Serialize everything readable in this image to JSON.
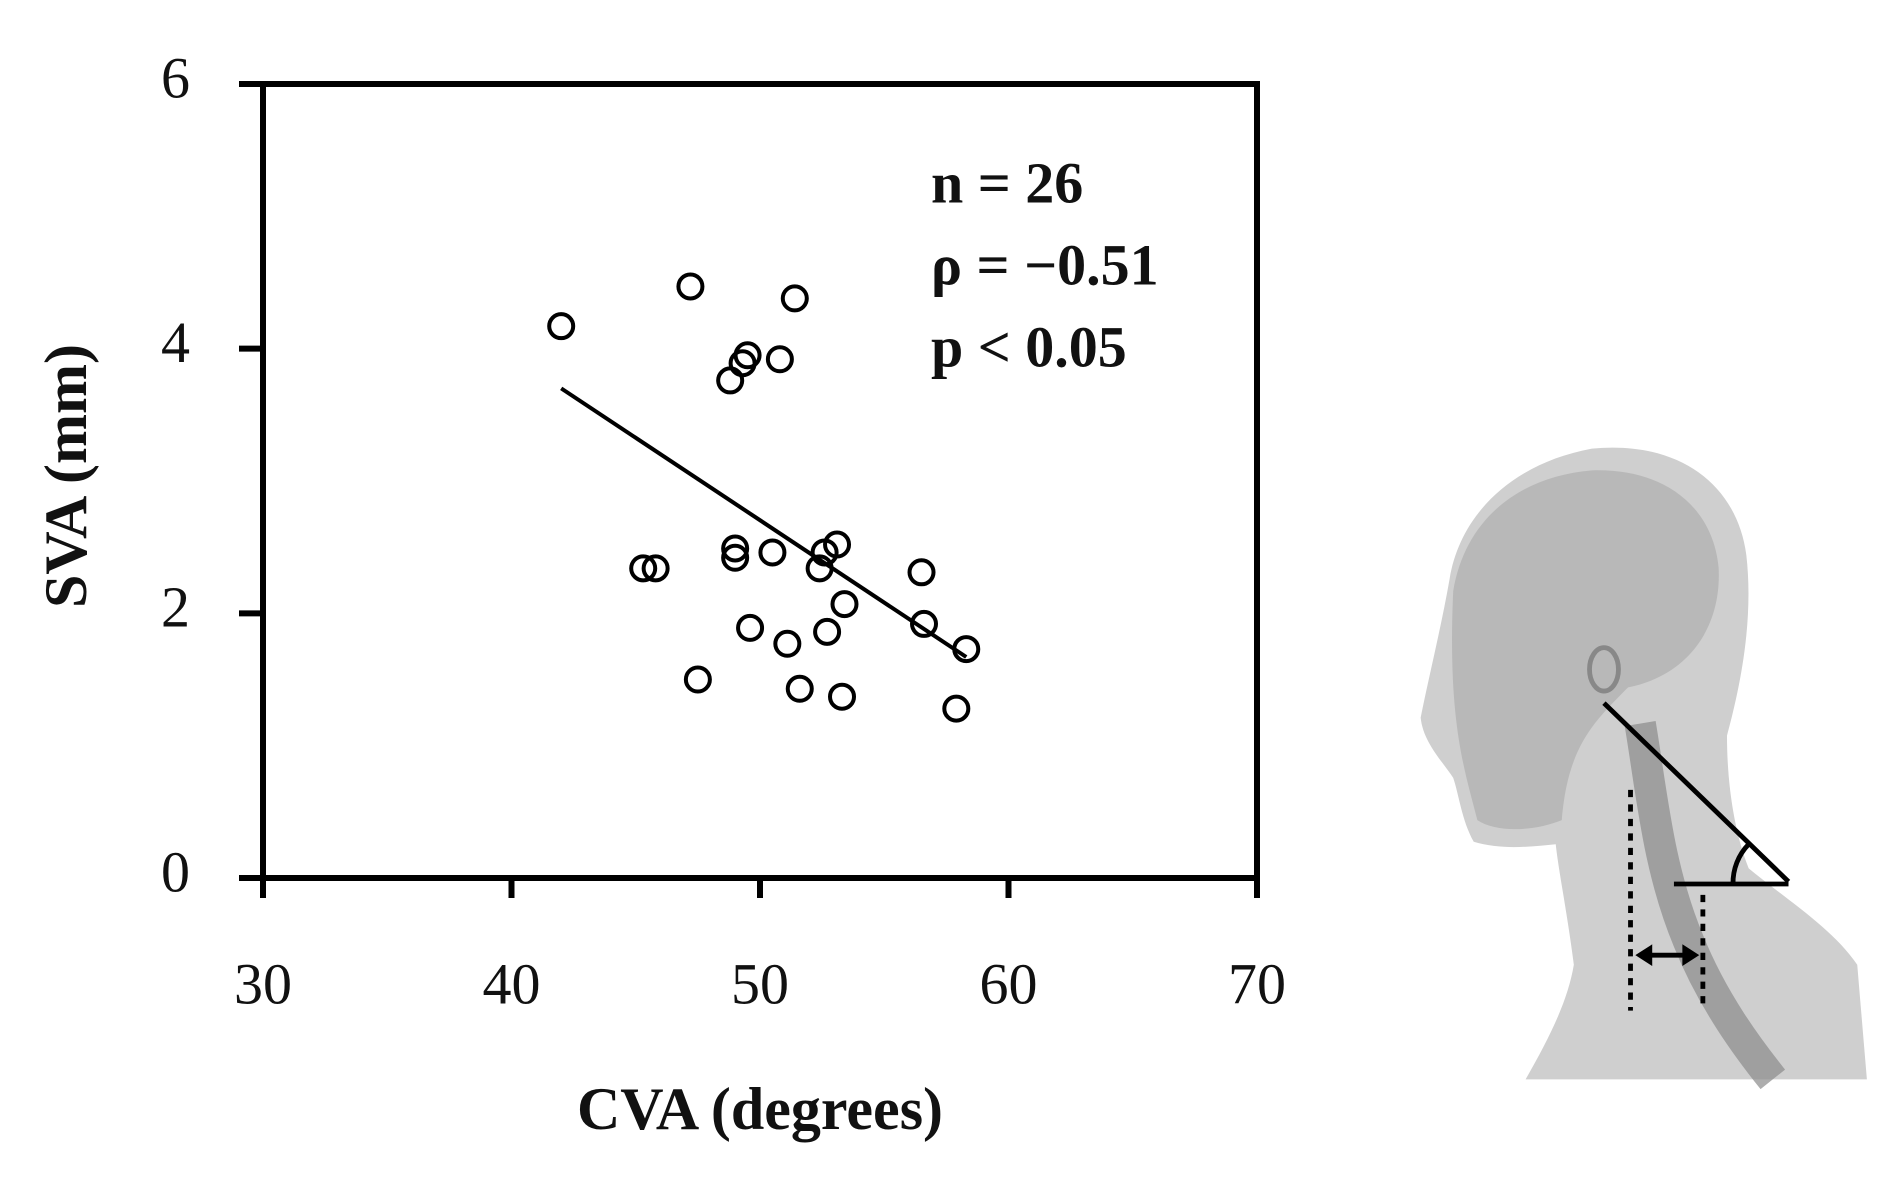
{
  "chart_data": {
    "type": "scatter",
    "xlabel": "CVA (degrees)",
    "ylabel": "SVA (mm)",
    "xlim": [
      30,
      70
    ],
    "xticks": [
      30,
      40,
      50,
      60,
      70
    ],
    "ylim": [
      0,
      6
    ],
    "yticks": [
      0,
      2,
      4,
      6
    ],
    "series": [
      {
        "color": "#000000",
        "x": [
          42.0,
          47.2,
          51.4,
          49.5,
          49.3,
          50.8,
          48.8,
          45.3,
          45.8,
          49.0,
          49.0,
          50.5,
          52.6,
          53.1,
          52.4,
          56.5,
          53.4,
          49.6,
          51.1,
          52.7,
          56.6,
          58.3,
          47.5,
          51.6,
          53.3,
          57.9
        ],
        "values": [
          4.17,
          4.47,
          4.38,
          3.95,
          3.89,
          3.92,
          3.76,
          2.34,
          2.34,
          2.49,
          2.42,
          2.46,
          2.46,
          2.52,
          2.34,
          2.31,
          2.07,
          1.89,
          1.77,
          1.86,
          1.92,
          1.73,
          1.5,
          1.43,
          1.37,
          1.28
        ]
      }
    ],
    "trendline": {
      "x": [
        42.0,
        58.3
      ],
      "y": [
        3.7,
        1.67
      ]
    },
    "annotations": [
      "n = 26",
      "ρ = −0.51",
      "p < 0.05"
    ]
  }
}
